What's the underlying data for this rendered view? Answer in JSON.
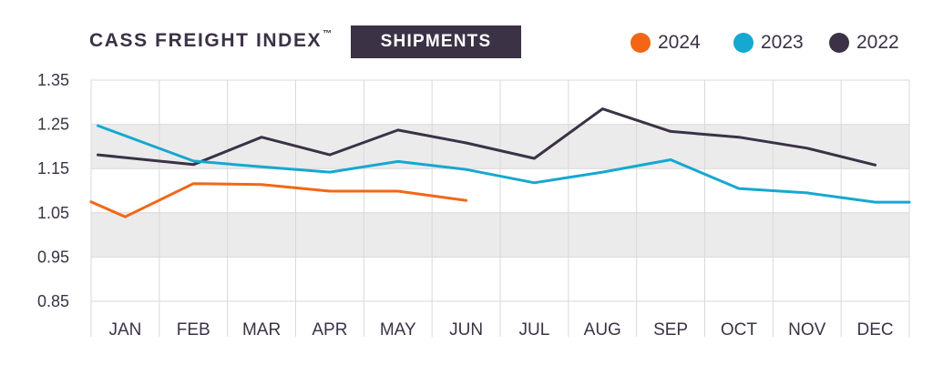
{
  "header": {
    "title": "CASS FREIGHT INDEX",
    "trademark": "™",
    "badge": "SHIPMENTS"
  },
  "colors": {
    "text": "#3b3245",
    "band": "#ebebec",
    "grid": "#d9d9db",
    "s2024": "#f26716",
    "s2023": "#15a8d0",
    "s2022": "#3b3245"
  },
  "chart_data": {
    "type": "line",
    "categories": [
      "JAN",
      "FEB",
      "MAR",
      "APR",
      "MAY",
      "JUN",
      "JUL",
      "AUG",
      "SEP",
      "OCT",
      "NOV",
      "DEC"
    ],
    "ylim": [
      0.85,
      1.35
    ],
    "yticks": [
      "0.85",
      "0.95",
      "1.05",
      "1.15",
      "1.25",
      "1.35"
    ],
    "grid": true,
    "legend_position": "top-right",
    "series": [
      {
        "name": "2024",
        "color": "#f26716",
        "x": [
          0,
          0.5,
          1.5,
          2.5,
          3.5,
          4.5,
          5.5
        ],
        "values": [
          1.075,
          1.041,
          1.116,
          1.114,
          1.099,
          1.099,
          1.078
        ]
      },
      {
        "name": "2023",
        "color": "#15a8d0",
        "x": [
          0.1,
          1.5,
          2.5,
          3.5,
          4.5,
          5.5,
          6.5,
          7.5,
          8.5,
          9.5,
          10.5,
          11.5,
          12.0
        ],
        "values": [
          1.247,
          1.167,
          1.154,
          1.142,
          1.166,
          1.148,
          1.118,
          1.142,
          1.17,
          1.105,
          1.095,
          1.074,
          1.074
        ]
      },
      {
        "name": "2022",
        "color": "#3b3245",
        "x": [
          0.1,
          1.5,
          2.5,
          3.5,
          4.5,
          5.5,
          6.5,
          7.5,
          8.5,
          9.5,
          10.5,
          11.5
        ],
        "values": [
          1.181,
          1.159,
          1.221,
          1.181,
          1.237,
          1.208,
          1.173,
          1.285,
          1.234,
          1.221,
          1.196,
          1.158
        ]
      }
    ]
  }
}
